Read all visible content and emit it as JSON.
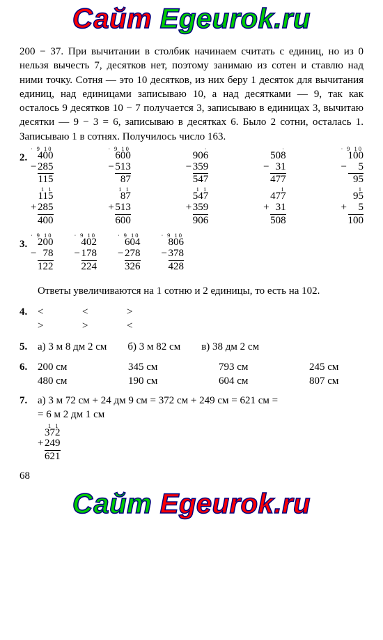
{
  "watermark_a": "Сайт ",
  "watermark_b": "Egeurok.ru",
  "intro": "200 − 37. При вычитании в столбик начинаем считать с единиц, но из 0 нельзя вычесть 7, десятков нет, поэтому занимаю из сотен и ставлю над ними точку. Сотня — это 10 десятков, из них беру 1 десяток для вычитания единиц, над единицами записываю 10, а над десятками — 9, так как осталось 9 десятков 10 − 7 получается 3, записываю в единицах 3, вычитаю десятки — 9 − 3 = 6, записываю в десятках 6. Было 2 сотни, осталась 1. Записываю 1 в сотнях. Получилось число 163.",
  "q2": {
    "label": "2.",
    "row1": [
      {
        "carry": "∙ 9 10",
        "a": "400",
        "op": "−",
        "b": "285",
        "r": "115"
      },
      {
        "carry": "∙ 9 10",
        "a": "600",
        "op": "−",
        "b": "513",
        "r": "87"
      },
      {
        "carry": "∙",
        "a": "906",
        "op": "−",
        "b": "359",
        "r": "547"
      },
      {
        "carry": "∙",
        "a": "508",
        "op": "−",
        "b": "31",
        "r": "477"
      },
      {
        "carry": "∙ 9 10",
        "a": "100",
        "op": "−",
        "b": "5",
        "r": "95"
      }
    ],
    "row2": [
      {
        "carry": "1 1",
        "a": "115",
        "op": "+",
        "b": "285",
        "r": "400"
      },
      {
        "carry": "1 1",
        "a": "87",
        "op": "+",
        "b": "513",
        "r": "600"
      },
      {
        "carry": "1 1",
        "a": "547",
        "op": "+",
        "b": "359",
        "r": "906"
      },
      {
        "carry": "1",
        "a": "477",
        "op": "+",
        "b": "31",
        "r": "508"
      },
      {
        "carry": "1",
        "a": "95",
        "op": "+",
        "b": "5",
        "r": "100"
      }
    ]
  },
  "q3": {
    "label": "3.",
    "row": [
      {
        "carry": "∙ 9 10",
        "a": "200",
        "op": "−",
        "b": "78",
        "r": "122"
      },
      {
        "carry": "∙ 9 10",
        "a": "402",
        "op": "−",
        "b": "178",
        "r": "224"
      },
      {
        "carry": "∙ 9 10",
        "a": "604",
        "op": "−",
        "b": "278",
        "r": "326"
      },
      {
        "carry": "∙ 9 10",
        "a": "806",
        "op": "−",
        "b": "378",
        "r": "428"
      }
    ],
    "note": "Ответы увеличиваются на 1 сотню и 2 единицы, то есть на 102."
  },
  "q4": {
    "label": "4.",
    "r1": [
      "<",
      "<",
      ">"
    ],
    "r2": [
      ">",
      ">",
      "<"
    ]
  },
  "q5": {
    "label": "5.",
    "items": [
      "а) 3 м 8 дм 2 см",
      "б) 3 м 82 см",
      "в) 38 дм 2 см"
    ]
  },
  "q6": {
    "label": "6.",
    "r1": [
      "200 см",
      "345 см",
      "793 см",
      "245 см"
    ],
    "r2": [
      "480 см",
      "190 см",
      "604 см",
      "807 см"
    ]
  },
  "q7": {
    "label": "7.",
    "line1": "а) 3 м 72 см + 24 дм 9 см = 372 см + 249 см = 621 см =",
    "line2": "= 6 м 2 дм 1 см",
    "calc": {
      "carry": "1 1",
      "a": "372",
      "op": "+",
      "b": "249",
      "r": "621"
    }
  },
  "pagenum": "68"
}
